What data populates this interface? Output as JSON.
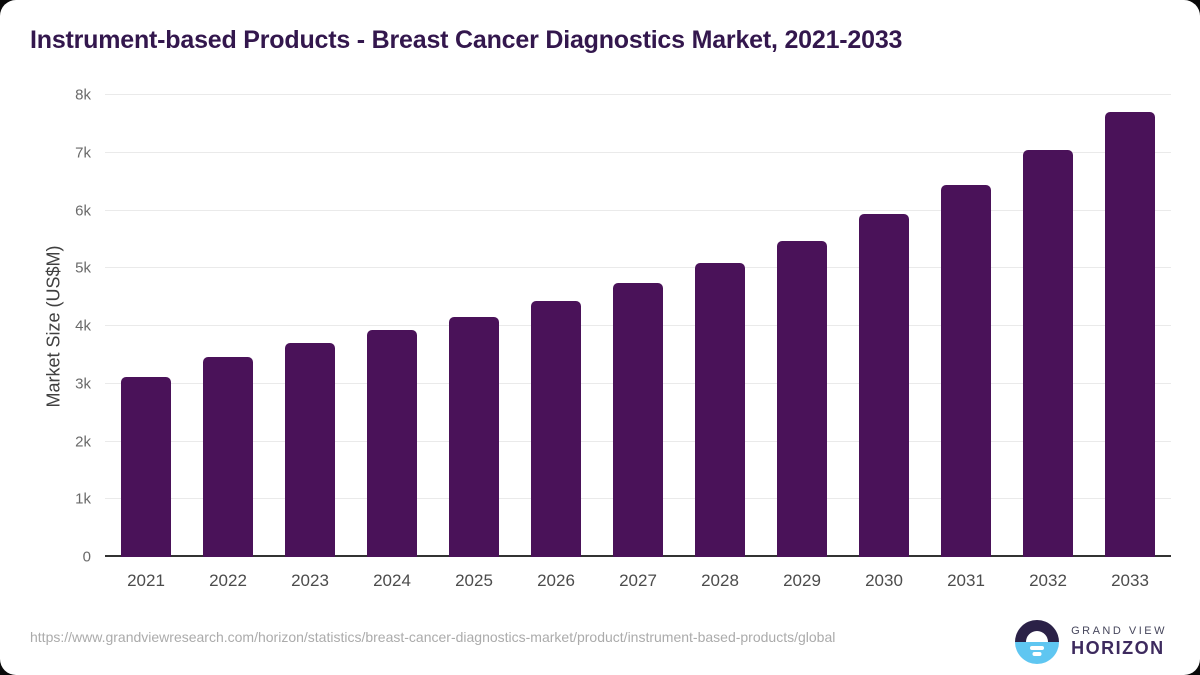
{
  "chart_data": {
    "type": "bar",
    "title": "Instrument-based Products - Breast Cancer Diagnostics Market, 2021-2033",
    "xlabel": "",
    "ylabel": "Market Size (US$M)",
    "categories": [
      "2021",
      "2022",
      "2023",
      "2024",
      "2025",
      "2026",
      "2027",
      "2028",
      "2029",
      "2030",
      "2031",
      "2032",
      "2033"
    ],
    "values": [
      3120,
      3470,
      3700,
      3930,
      4150,
      4440,
      4750,
      5090,
      5480,
      5940,
      6450,
      7040,
      7710
    ],
    "ylim": [
      0,
      8000
    ],
    "y_ticks": [
      {
        "label": "0",
        "value": 0
      },
      {
        "label": "1k",
        "value": 1000
      },
      {
        "label": "2k",
        "value": 2000
      },
      {
        "label": "3k",
        "value": 3000
      },
      {
        "label": "4k",
        "value": 4000
      },
      {
        "label": "5k",
        "value": 5000
      },
      {
        "label": "6k",
        "value": 6000
      },
      {
        "label": "7k",
        "value": 7000
      },
      {
        "label": "8k",
        "value": 8000
      }
    ],
    "grid": "horizontal",
    "legend": "none",
    "bar_color": "#4a1259"
  },
  "colors": {
    "title": "#33174d",
    "bar": "#4a1259",
    "gridline": "#eaeaea",
    "axis_line": "#333333",
    "y_tick_text": "#6a6a6a",
    "x_tick_text": "#4c4c4c",
    "footer_text": "#ababab",
    "logo_navy": "#2b2147",
    "logo_blue": "#5fc6f1"
  },
  "footer": {
    "url_text": "https://www.grandviewresearch.com/horizon/statistics/breast-cancer-diagnostics-market/product/instrument-based-products/global"
  },
  "logo": {
    "icon": "horizon-sun-circle-icon",
    "line1": "GRAND VIEW",
    "line2": "HORIZON"
  }
}
